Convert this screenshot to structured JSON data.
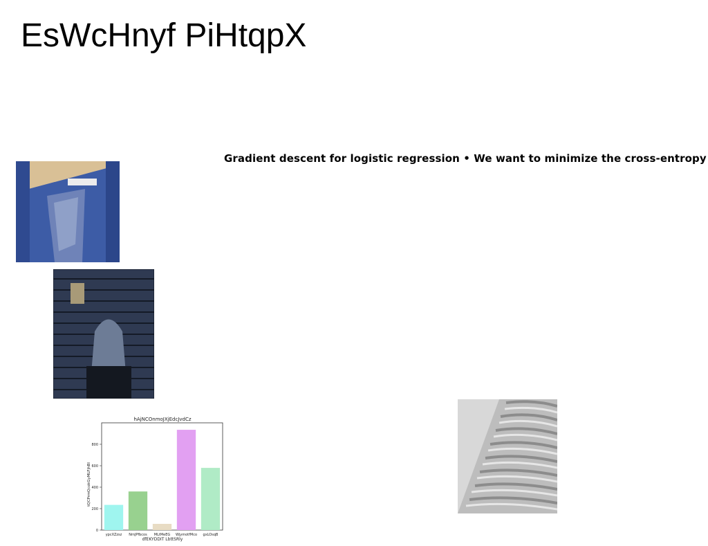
{
  "page": {
    "title": "EsWcHnyf PiHtqpX",
    "caption": "Gradient descent for logistic regression • We want to minimize the cross-entropy"
  },
  "images": [
    {
      "name": "blue-wall-photo",
      "colors": {
        "top": "#e8d2a6",
        "wall": "#3f5ea8",
        "dark": "#253a78"
      }
    },
    {
      "name": "woman-brick-wall-photo",
      "colors": {
        "brick": "#2a3448",
        "light": "#9aa7bd"
      }
    },
    {
      "name": "white-building-facade-photo",
      "colors": {
        "sky": "#d8d8d8",
        "facade": "#b9b9b9"
      }
    }
  ],
  "chart_data": {
    "type": "bar",
    "title": "hAjNCOnmoJXjEdcJvdCz",
    "xlabel": "dfEKYDDIT LbttSRly",
    "ylabel": "tQCPrmQcokGyMLFjhBl",
    "categories": [
      "ypcXZzsz",
      "NmJPfbcos",
      "MLtMeEG",
      "WjymotfMco",
      "gxLOsqB"
    ],
    "values": [
      235,
      360,
      58,
      935,
      580
    ],
    "colors": [
      "#9ff5ef",
      "#98d18f",
      "#e8dcc4",
      "#e2a0f2",
      "#b0ebc6"
    ],
    "ylim": [
      0,
      1000
    ],
    "yticks": [
      0,
      200,
      400,
      600,
      800
    ],
    "grid": false
  }
}
